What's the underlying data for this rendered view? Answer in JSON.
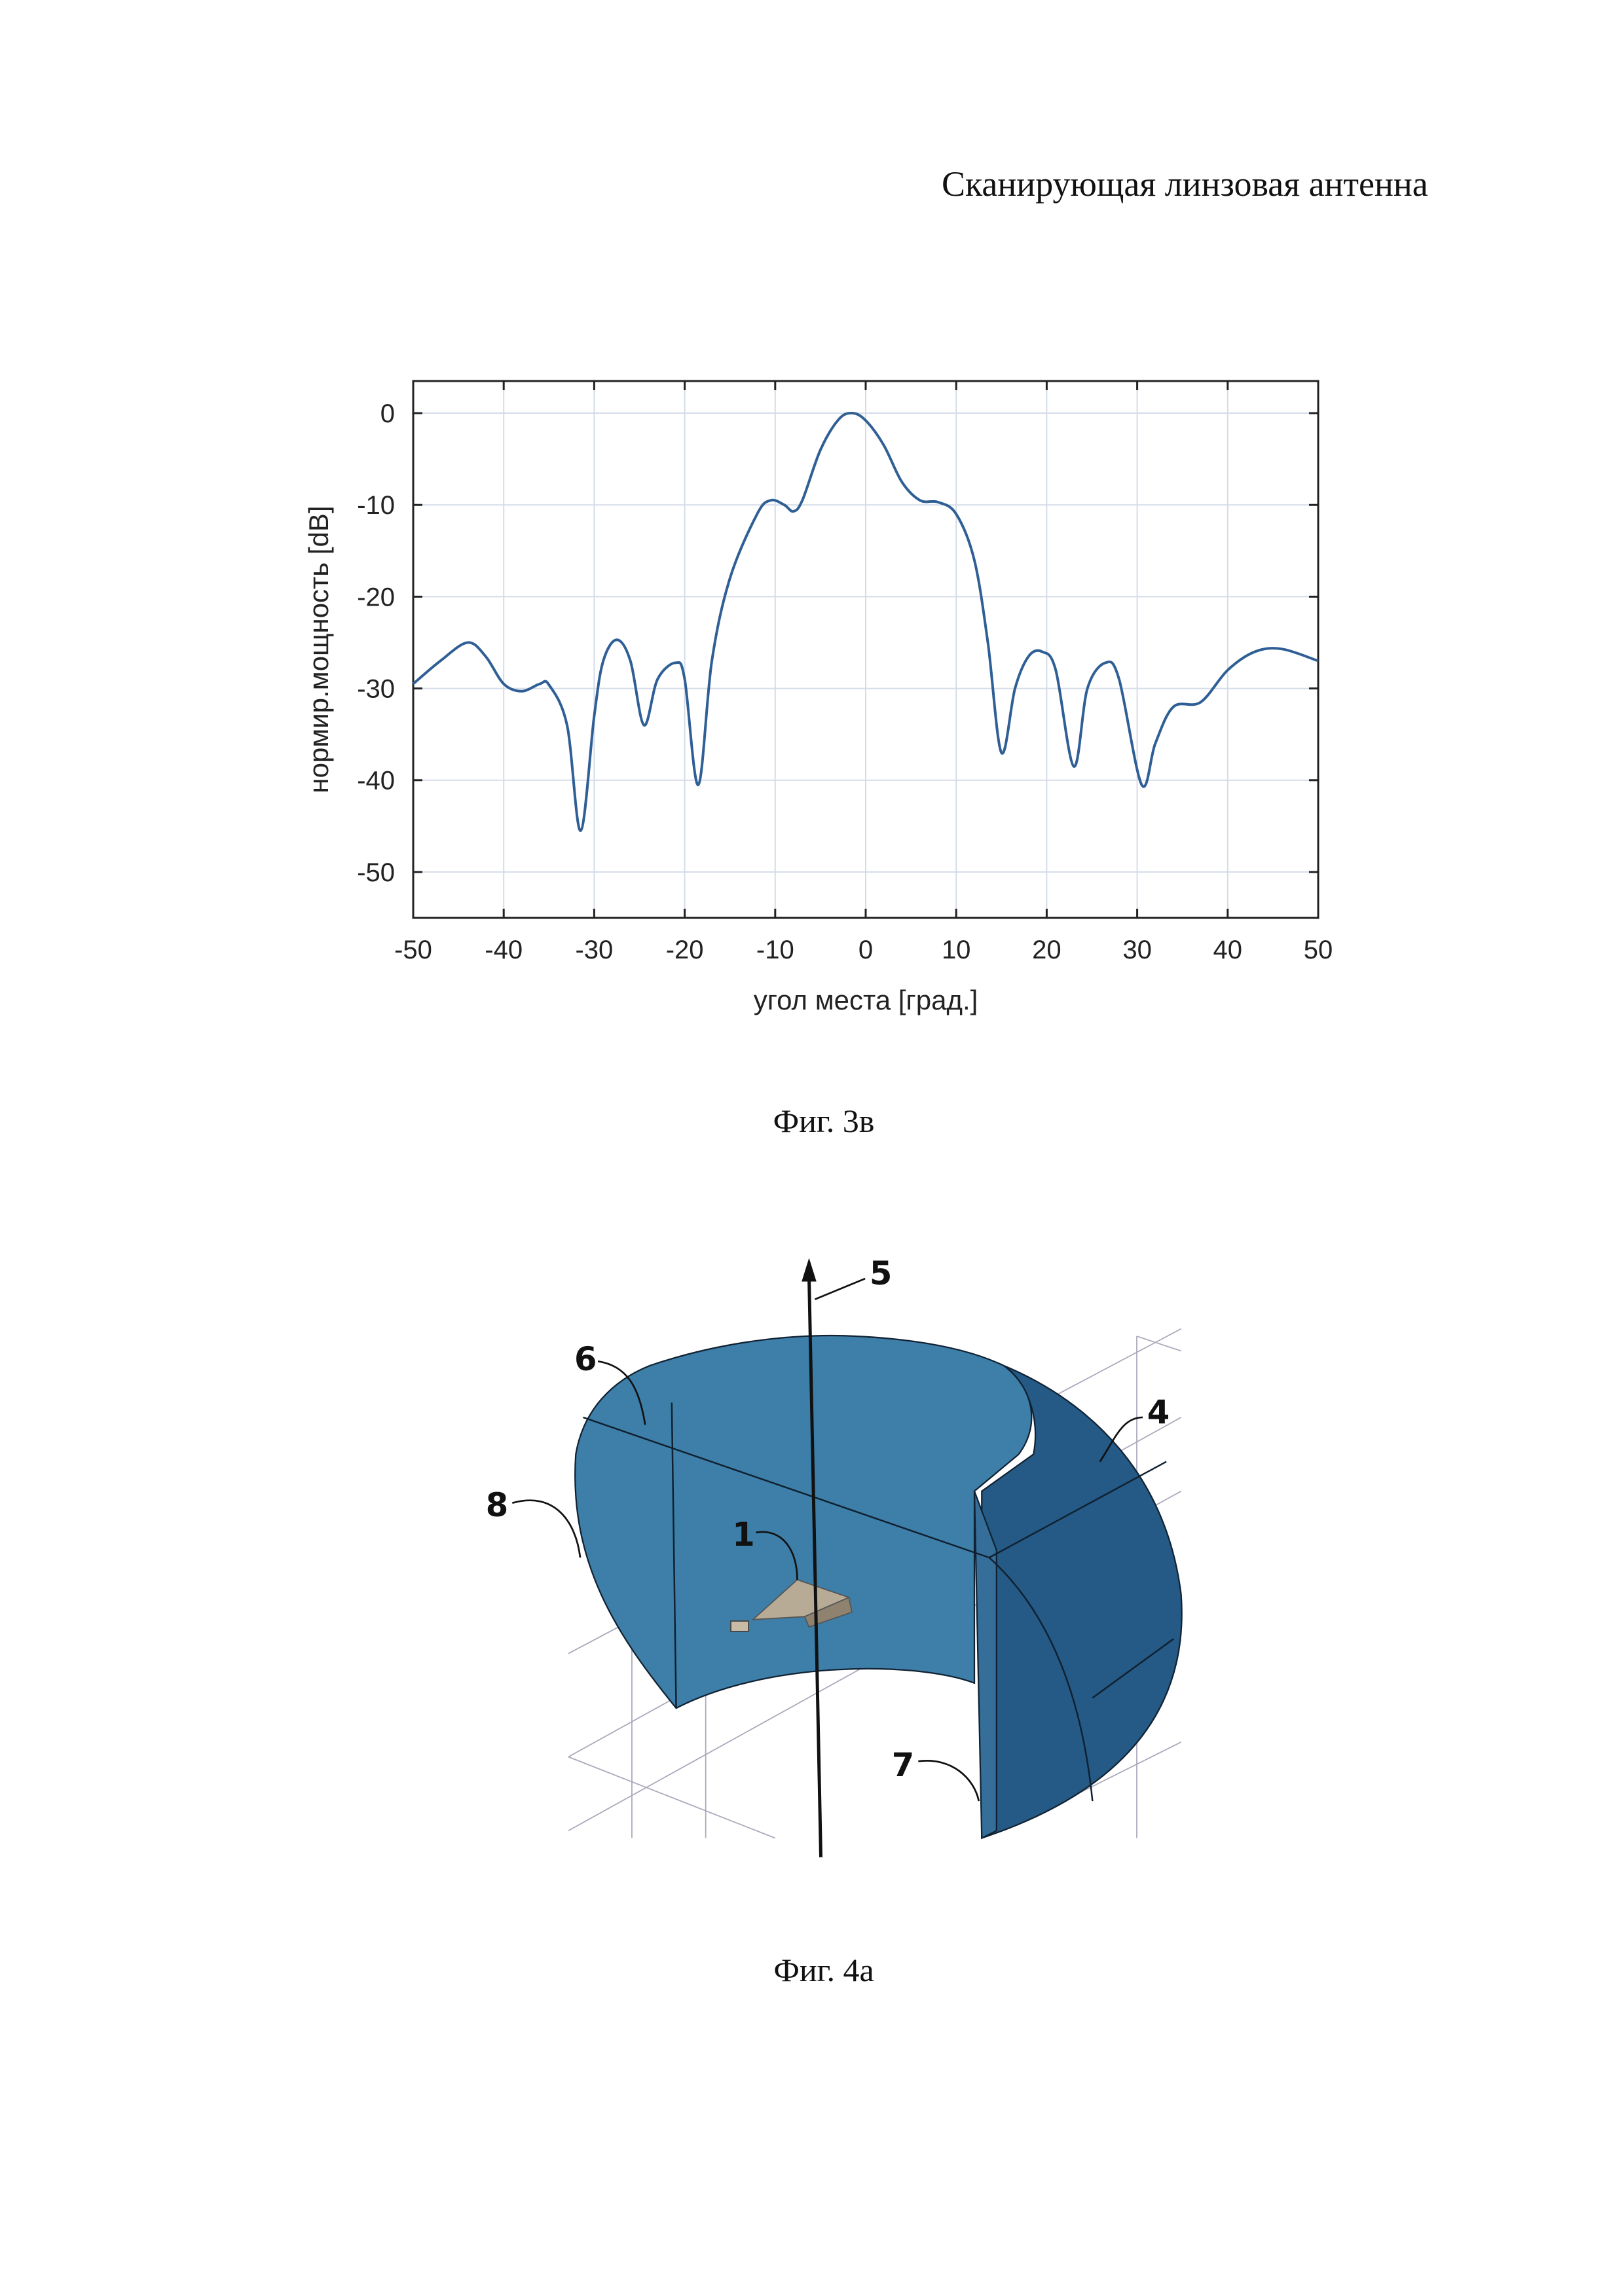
{
  "header": {
    "title": "Сканирующая линзовая антенна"
  },
  "figure_3v": {
    "caption": "Фиг. 3в"
  },
  "figure_4a": {
    "caption": "Фиг. 4а",
    "labels": [
      "5",
      "6",
      "4",
      "8",
      "1",
      "7"
    ],
    "colors": {
      "lens_front": "#3d7fa8",
      "lens_side": "#245a85",
      "horn": "#b8ab95"
    }
  },
  "chart_data": {
    "type": "line",
    "title": "",
    "xlabel": "угол места [град.]",
    "ylabel": "нормир.мощность [dB]",
    "xlim": [
      -50,
      50
    ],
    "ylim": [
      -55,
      3.5
    ],
    "xticks": [
      -50,
      -40,
      -30,
      -20,
      -10,
      0,
      10,
      20,
      30,
      40,
      50
    ],
    "yticks": [
      0,
      -10,
      -20,
      -30,
      -40,
      -50
    ],
    "grid": true,
    "line_color": "#2f5f95",
    "series": [
      {
        "name": "pattern",
        "x": [
          -50,
          -47,
          -44,
          -42,
          -40,
          -38,
          -36,
          -35,
          -33,
          -31.5,
          -30,
          -29,
          -27.5,
          -26,
          -24.5,
          -23,
          -21,
          -20,
          -18.5,
          -17,
          -15,
          -12,
          -10.5,
          -9,
          -8,
          -7,
          -5,
          -3,
          -1.5,
          0,
          2,
          4,
          6,
          8,
          10,
          12,
          13.5,
          15,
          16.5,
          18,
          19.5,
          21,
          23,
          24.5,
          26.5,
          28,
          30.5,
          32,
          34,
          37,
          40,
          43,
          46,
          50
        ],
        "y": [
          -29.5,
          -27,
          -25,
          -26.5,
          -29.5,
          -30.3,
          -29.5,
          -29.6,
          -34,
          -45.5,
          -33,
          -27,
          -24.7,
          -27,
          -34,
          -29,
          -27.2,
          -29,
          -40.5,
          -27,
          -18,
          -11,
          -9.5,
          -10,
          -10.7,
          -9.5,
          -4,
          -0.7,
          0,
          -0.8,
          -3.5,
          -7.5,
          -9.5,
          -9.7,
          -11,
          -16,
          -25,
          -37,
          -30,
          -26.5,
          -26,
          -28,
          -38.5,
          -30,
          -27.2,
          -29,
          -40.5,
          -36,
          -32,
          -31.5,
          -28,
          -26,
          -25.7,
          -27
        ]
      }
    ]
  }
}
